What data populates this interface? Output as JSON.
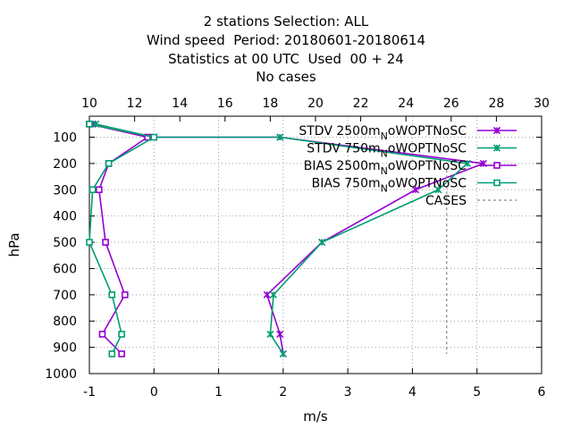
{
  "title_lines": [
    "2 stations Selection: ALL",
    "Wind speed  Period: 20180601-20180614",
    "Statistics at 00 UTC  Used  00 + 24",
    "No cases"
  ],
  "chart_data": {
    "type": "line",
    "xlabel": "m/s",
    "ylabel": "hPa",
    "xlim": [
      -1,
      6
    ],
    "x_ticks": [
      "-1",
      "0",
      "1",
      "2",
      "3",
      "4",
      "5",
      "6"
    ],
    "x2lim": [
      10,
      30
    ],
    "x2_ticks": [
      "10",
      "12",
      "14",
      "16",
      "18",
      "20",
      "22",
      "24",
      "26",
      "28",
      "30"
    ],
    "ylim": [
      1000,
      20
    ],
    "y_ticks": [
      "100",
      "200",
      "300",
      "400",
      "500",
      "600",
      "700",
      "800",
      "900",
      "1000"
    ],
    "grid": true,
    "legend_position": "top-right",
    "series": [
      {
        "name": "STDV 2500m_N oWOPTNoSC",
        "legend_main": "STDV 2500m",
        "legend_sub": "N",
        "legend_tail": "oWOPTNoSC",
        "color": "#9400d3",
        "marker": "x",
        "points": [
          [
            -0.95,
            50
          ],
          [
            -0.1,
            100
          ],
          [
            1.95,
            100
          ],
          [
            5.1,
            200
          ],
          [
            4.05,
            300
          ],
          [
            2.6,
            500
          ],
          [
            1.75,
            700
          ],
          [
            1.95,
            850
          ],
          [
            2.0,
            925
          ]
        ]
      },
      {
        "name": "STDV 750m_N oWOPTNoSC",
        "legend_main": "STDV 750m",
        "legend_sub": "N",
        "legend_tail": "oWOPTNoSC",
        "color": "#009e73",
        "marker": "x",
        "points": [
          [
            -0.9,
            50
          ],
          [
            0.0,
            100
          ],
          [
            1.95,
            100
          ],
          [
            4.85,
            200
          ],
          [
            4.4,
            300
          ],
          [
            2.6,
            500
          ],
          [
            1.85,
            700
          ],
          [
            1.8,
            850
          ],
          [
            2.0,
            925
          ]
        ]
      },
      {
        "name": "BIAS 2500m_N oWOPTNoSC",
        "legend_main": "BIAS 2500m",
        "legend_sub": "N",
        "legend_tail": "oWOPTNoSC",
        "color": "#9400d3",
        "marker": "square",
        "points": [
          [
            -1.0,
            50
          ],
          [
            -0.1,
            100
          ],
          [
            -0.7,
            200
          ],
          [
            -0.85,
            300
          ],
          [
            -0.75,
            500
          ],
          [
            -0.45,
            700
          ],
          [
            -0.8,
            850
          ],
          [
            -0.5,
            925
          ]
        ]
      },
      {
        "name": "BIAS 750m_N oWOPTNoSC",
        "legend_main": "BIAS 750m",
        "legend_sub": "N",
        "legend_tail": "oWOPTNoSC",
        "color": "#009e73",
        "marker": "square",
        "points": [
          [
            -1.0,
            50
          ],
          [
            0.0,
            100
          ],
          [
            -0.7,
            200
          ],
          [
            -0.95,
            300
          ],
          [
            -1.0,
            500
          ],
          [
            -0.65,
            700
          ],
          [
            -0.5,
            850
          ],
          [
            -0.65,
            925
          ]
        ]
      }
    ],
    "cases": {
      "name": "CASES",
      "color": "#8c8c8c",
      "points_x2": [
        [
          25.8,
          225
        ],
        [
          25.8,
          925
        ]
      ]
    }
  }
}
